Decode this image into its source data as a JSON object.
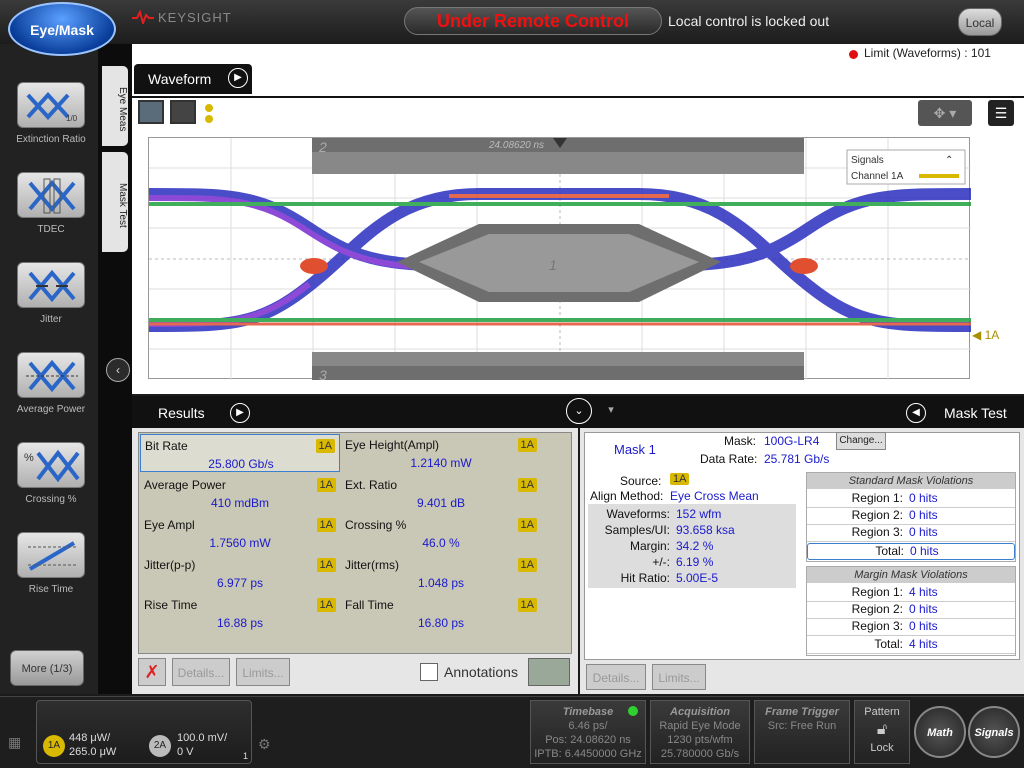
{
  "app": {
    "mode_button": "Eye/Mask",
    "brand": "KEYSIGHT",
    "remote_banner": "Under Remote Control",
    "locked_text": "Local control is locked out",
    "local_button": "Local"
  },
  "left_tools": [
    {
      "label": "Extinction Ratio",
      "icon": "extinction-ratio-icon"
    },
    {
      "label": "TDEC",
      "icon": "tdec-icon"
    },
    {
      "label": "Jitter",
      "icon": "jitter-icon"
    },
    {
      "label": "Average Power",
      "icon": "average-power-icon"
    },
    {
      "label": "Crossing %",
      "icon": "crossing-percent-icon"
    },
    {
      "label": "Rise Time",
      "icon": "rise-time-icon"
    }
  ],
  "more_button": "More (1/3)",
  "side_tabs": [
    "Eye Meas",
    "Mask Test"
  ],
  "waveform": {
    "tab": "Waveform",
    "limit_status": "Limit (Waveforms) : 101",
    "delay_label": "24.08620 ns",
    "mask_region_labels": [
      "1",
      "2",
      "3"
    ],
    "channel_marker": "1A",
    "legend_title": "Signals",
    "legend_item": "Channel 1A"
  },
  "results": {
    "title": "Results",
    "measurements": [
      {
        "name": "Bit Rate",
        "value": "25.800 Gb/s",
        "ch": "1A"
      },
      {
        "name": "Eye Height(Ampl)",
        "value": "1.2140 mW",
        "ch": "1A"
      },
      {
        "name": "Average Power",
        "value": "410 mdBm",
        "ch": "1A"
      },
      {
        "name": "Ext. Ratio",
        "value": "9.401 dB",
        "ch": "1A"
      },
      {
        "name": "Eye Ampl",
        "value": "1.7560 mW",
        "ch": "1A"
      },
      {
        "name": "Crossing %",
        "value": "46.0 %",
        "ch": "1A"
      },
      {
        "name": "Jitter(p-p)",
        "value": "6.977 ps",
        "ch": "1A"
      },
      {
        "name": "Jitter(rms)",
        "value": "1.048 ps",
        "ch": "1A"
      },
      {
        "name": "Rise Time",
        "value": "16.88 ps",
        "ch": "1A"
      },
      {
        "name": "Fall Time",
        "value": "16.80 ps",
        "ch": "1A"
      }
    ],
    "details_button": "Details...",
    "limits_button": "Limits...",
    "annotations_label": "Annotations"
  },
  "mask_test": {
    "title": "Mask Test",
    "mask_label": "Mask 1",
    "mask_key": "Mask:",
    "mask_value": "100G-LR4",
    "change_button": "Change...",
    "data_rate_key": "Data Rate:",
    "data_rate_value": "25.781 Gb/s",
    "source_key": "Source:",
    "source_value": "1A",
    "align_key": "Align Method:",
    "align_value": "Eye Cross Mean",
    "stats": [
      {
        "k": "Waveforms:",
        "v": "152 wfm"
      },
      {
        "k": "Samples/UI:",
        "v": "93.658 ksa"
      },
      {
        "k": "Margin:",
        "v": "34.2 %"
      },
      {
        "k": "+/-:",
        "v": "6.19 %"
      },
      {
        "k": "Hit Ratio:",
        "v": "5.00E-5"
      }
    ],
    "standard_title": "Standard Mask Violations",
    "standard": [
      {
        "k": "Region 1:",
        "v": "0 hits"
      },
      {
        "k": "Region 2:",
        "v": "0 hits"
      },
      {
        "k": "Region 3:",
        "v": "0 hits"
      },
      {
        "k": "Total:",
        "v": "0 hits"
      }
    ],
    "margin_title": "Margin Mask Violations",
    "margin": [
      {
        "k": "Region 1:",
        "v": "4 hits"
      },
      {
        "k": "Region 2:",
        "v": "0 hits"
      },
      {
        "k": "Region 3:",
        "v": "0 hits"
      },
      {
        "k": "Total:",
        "v": "4 hits"
      }
    ],
    "details_button": "Details...",
    "limits_button": "Limits..."
  },
  "bottom": {
    "ch1_badge": "1A",
    "ch1_line1": "448 μW/",
    "ch1_line2": "265.0 μW",
    "ch2_badge": "2A",
    "ch2_line1": "100.0 mV/",
    "ch2_line2": "0 V",
    "page_num": "1",
    "timebase_title": "Timebase",
    "timebase_lines": [
      "6.46 ps/",
      "Pos: 24.08620 ns",
      "IPTB: 6.4450000 GHz"
    ],
    "acq_title": "Acquisition",
    "acq_lines": [
      "Rapid Eye Mode",
      "1230 pts/wfm",
      "25.780000 Gb/s"
    ],
    "trig_title": "Frame Trigger",
    "trig_lines": [
      "Src: Free Run"
    ],
    "pattern_label": "Pattern",
    "lock_label": "Lock",
    "math_button": "Math",
    "signals_button": "Signals"
  },
  "colors": {
    "remote_red": "#f01010",
    "value_blue": "#1a1acc",
    "channel_yellow": "#d8b800"
  }
}
